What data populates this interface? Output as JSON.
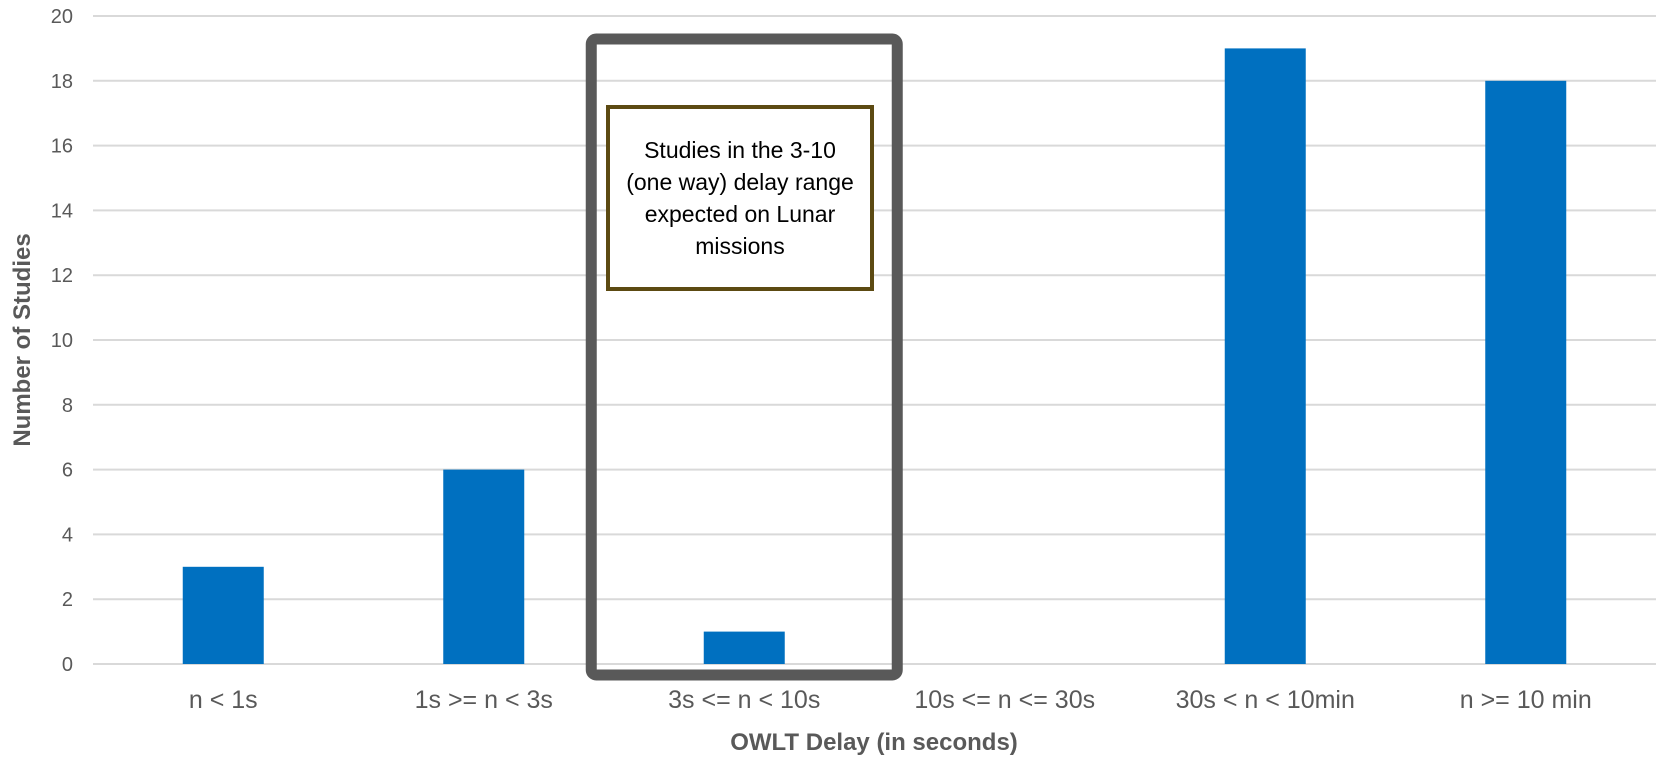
{
  "chart_data": {
    "type": "bar",
    "title": "",
    "xlabel": "OWLT Delay (in seconds)",
    "ylabel": "Number of Studies",
    "categories": [
      "n < 1s",
      "1s >= n < 3s",
      "3s <= n < 10s",
      "10s <= n <= 30s",
      "30s < n < 10min",
      "n >= 10 min"
    ],
    "values": [
      3,
      6,
      1,
      0,
      19,
      18
    ],
    "ylim": [
      0,
      20
    ],
    "yticks": [
      0,
      2,
      4,
      6,
      8,
      10,
      12,
      14,
      16,
      18,
      20
    ],
    "grid": true,
    "legend": "none",
    "highlight_category": "3s <= n < 10s",
    "annotation": "Studies in the 3-10 (one way) delay range expected on Lunar missions",
    "colors": {
      "bar": "#0070C0",
      "grid": "#D9D9D9",
      "highlight_border": "#595959",
      "annotation_border": "#5c4a12",
      "text": "#595959"
    }
  }
}
